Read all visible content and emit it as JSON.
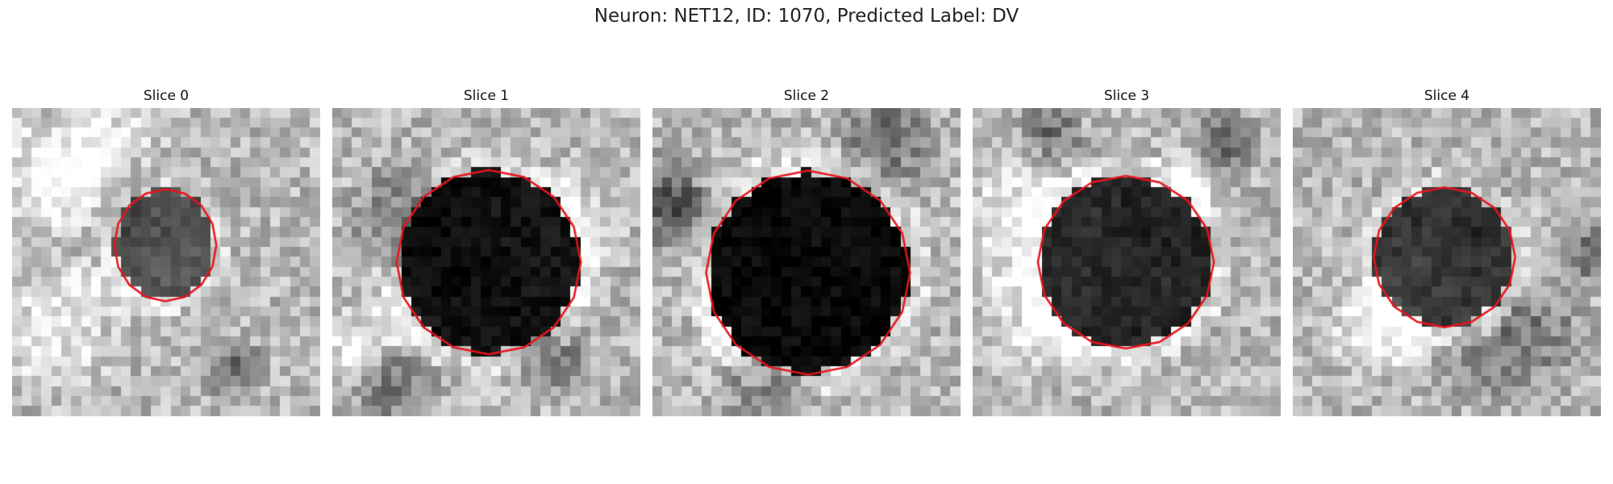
{
  "figure": {
    "title": "Neuron: NET12, ID: 1070, Predicted Label: DV",
    "contour_color": "#e8141c"
  },
  "slices": [
    {
      "label": "Slice 0",
      "soma_darkness": 0.55
    },
    {
      "label": "Slice 1",
      "soma_darkness": 0.9
    },
    {
      "label": "Slice 2",
      "soma_darkness": 0.95
    },
    {
      "label": "Slice 3",
      "soma_darkness": 0.8
    },
    {
      "label": "Slice 4",
      "soma_darkness": 0.7
    }
  ]
}
